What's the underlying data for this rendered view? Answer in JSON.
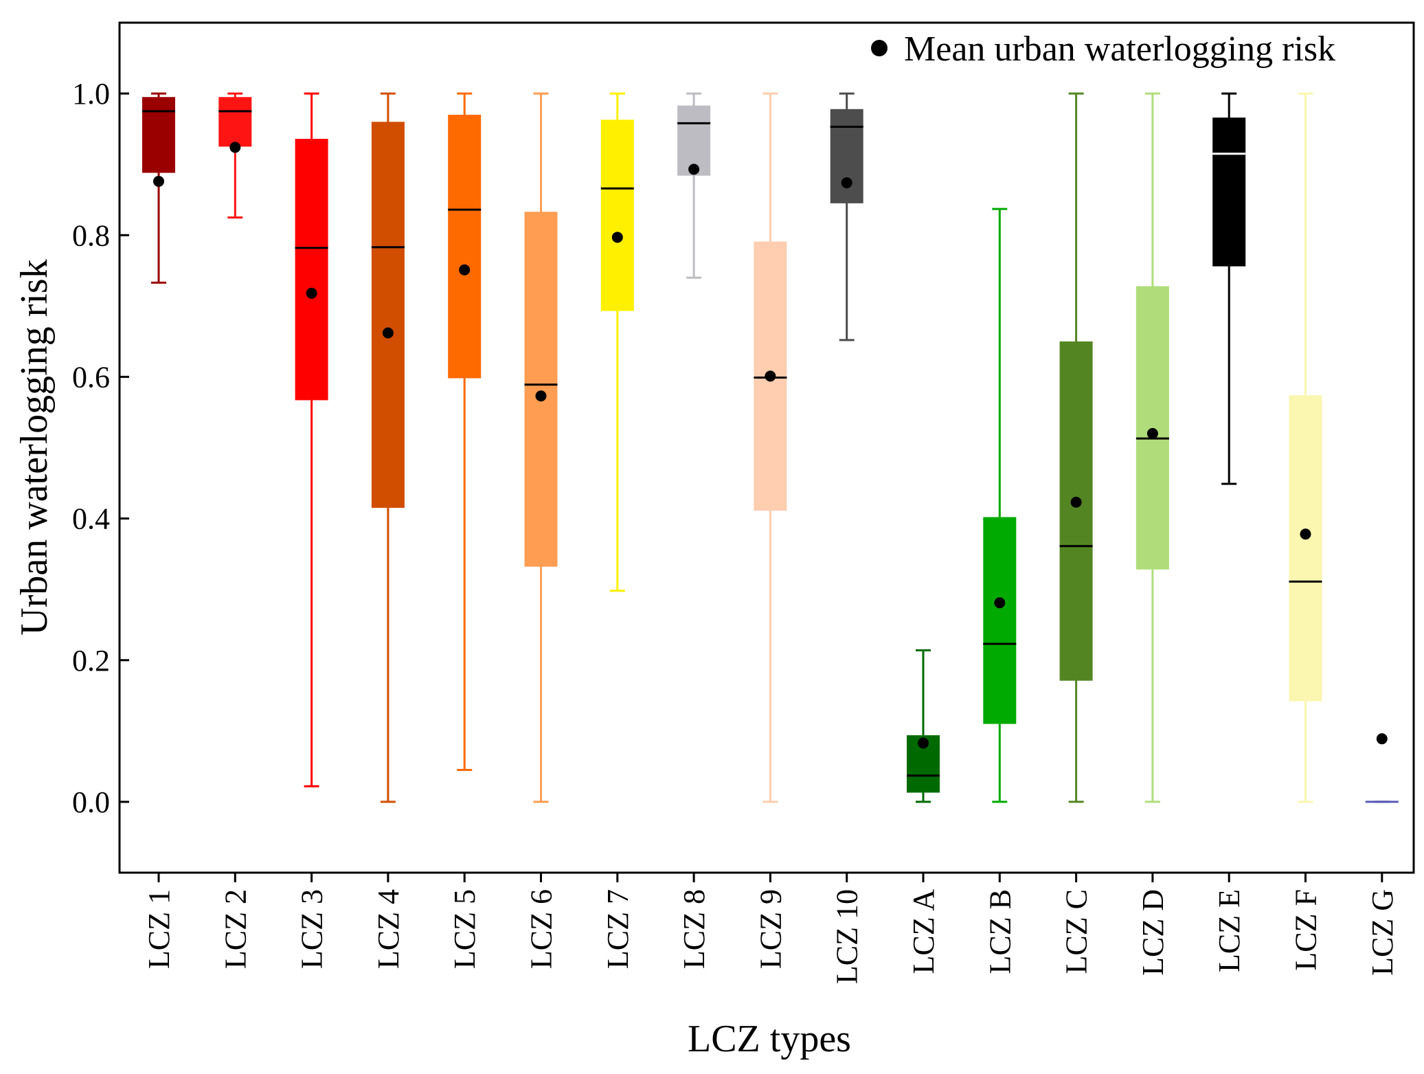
{
  "chart_data": {
    "type": "box",
    "title": "",
    "xlabel": "LCZ types",
    "ylabel": "Urban waterlogging risk",
    "ylim": [
      -0.1,
      1.1
    ],
    "yticks": [
      0.0,
      0.2,
      0.4,
      0.6,
      0.8,
      1.0
    ],
    "ytick_labels": [
      "0.0",
      "0.2",
      "0.4",
      "0.6",
      "0.8",
      "1.0"
    ],
    "grid": false,
    "legend": {
      "label": "Mean urban waterlogging risk",
      "position": "top-right"
    },
    "categories": [
      "LCZ 1",
      "LCZ 2",
      "LCZ 3",
      "LCZ 4",
      "LCZ 5",
      "LCZ 6",
      "LCZ 7",
      "LCZ 8",
      "LCZ 9",
      "LCZ 10",
      "LCZ A",
      "LCZ B",
      "LCZ C",
      "LCZ D",
      "LCZ E",
      "LCZ F",
      "LCZ G"
    ],
    "boxes": [
      {
        "category": "LCZ 1",
        "min": 0.733,
        "q1": 0.888,
        "median": 0.975,
        "q3": 0.995,
        "max": 1.0,
        "mean": 0.876,
        "color": "#9b0000",
        "median_color": "#000000"
      },
      {
        "category": "LCZ 2",
        "min": 0.825,
        "q1": 0.925,
        "median": 0.975,
        "q3": 0.995,
        "max": 1.0,
        "mean": 0.924,
        "color": "#ff1414",
        "median_color": "#000000"
      },
      {
        "category": "LCZ 3",
        "min": 0.022,
        "q1": 0.567,
        "median": 0.782,
        "q3": 0.936,
        "max": 1.0,
        "mean": 0.718,
        "color": "#ff0000",
        "median_color": "#000000"
      },
      {
        "category": "LCZ 4",
        "min": 0.0,
        "q1": 0.415,
        "median": 0.783,
        "q3": 0.96,
        "max": 1.0,
        "mean": 0.662,
        "color": "#d14e00",
        "median_color": "#000000"
      },
      {
        "category": "LCZ 5",
        "min": 0.045,
        "q1": 0.598,
        "median": 0.836,
        "q3": 0.97,
        "max": 1.0,
        "mean": 0.751,
        "color": "#ff6a00",
        "median_color": "#000000"
      },
      {
        "category": "LCZ 6",
        "min": 0.0,
        "q1": 0.332,
        "median": 0.589,
        "q3": 0.833,
        "max": 1.0,
        "mean": 0.573,
        "color": "#ff9d52",
        "median_color": "#000000"
      },
      {
        "category": "LCZ 7",
        "min": 0.298,
        "q1": 0.693,
        "median": 0.866,
        "q3": 0.963,
        "max": 1.0,
        "mean": 0.797,
        "color": "#fff000",
        "median_color": "#000000"
      },
      {
        "category": "LCZ 8",
        "min": 0.74,
        "q1": 0.884,
        "median": 0.958,
        "q3": 0.983,
        "max": 1.0,
        "mean": 0.893,
        "color": "#bcbcc2",
        "median_color": "#000000"
      },
      {
        "category": "LCZ 9",
        "min": 0.0,
        "q1": 0.411,
        "median": 0.599,
        "q3": 0.791,
        "max": 1.0,
        "mean": 0.601,
        "color": "#ffcdaf",
        "median_color": "#000000"
      },
      {
        "category": "LCZ 10",
        "min": 0.652,
        "q1": 0.845,
        "median": 0.953,
        "q3": 0.978,
        "max": 1.0,
        "mean": 0.874,
        "color": "#4d4d4d",
        "median_color": "#000000"
      },
      {
        "category": "LCZ A",
        "min": 0.0,
        "q1": 0.013,
        "median": 0.037,
        "q3": 0.094,
        "max": 0.214,
        "mean": 0.083,
        "color": "#006a00",
        "median_color": "#000000"
      },
      {
        "category": "LCZ B",
        "min": 0.0,
        "q1": 0.11,
        "median": 0.223,
        "q3": 0.402,
        "max": 0.837,
        "mean": 0.281,
        "color": "#00aa00",
        "median_color": "#000000"
      },
      {
        "category": "LCZ C",
        "min": 0.0,
        "q1": 0.171,
        "median": 0.361,
        "q3": 0.65,
        "max": 1.0,
        "mean": 0.423,
        "color": "#548523",
        "median_color": "#000000"
      },
      {
        "category": "LCZ D",
        "min": 0.0,
        "q1": 0.328,
        "median": 0.513,
        "q3": 0.728,
        "max": 1.0,
        "mean": 0.52,
        "color": "#b0dd7a",
        "median_color": "#000000"
      },
      {
        "category": "LCZ E",
        "min": 0.449,
        "q1": 0.756,
        "median": 0.915,
        "q3": 0.966,
        "max": 1.0,
        "mean": null,
        "color": "#000000",
        "median_color": "#ffffff"
      },
      {
        "category": "LCZ F",
        "min": 0.0,
        "q1": 0.142,
        "median": 0.311,
        "q3": 0.574,
        "max": 1.0,
        "mean": 0.378,
        "color": "#fbf6b0",
        "median_color": "#000000"
      },
      {
        "category": "LCZ G",
        "min": 0.0,
        "q1": 0.0,
        "median": 0.0,
        "q3": 0.0,
        "max": 0.0,
        "mean": 0.089,
        "color": "#5a5ab4",
        "median_color": "#5a5ab4"
      }
    ]
  }
}
